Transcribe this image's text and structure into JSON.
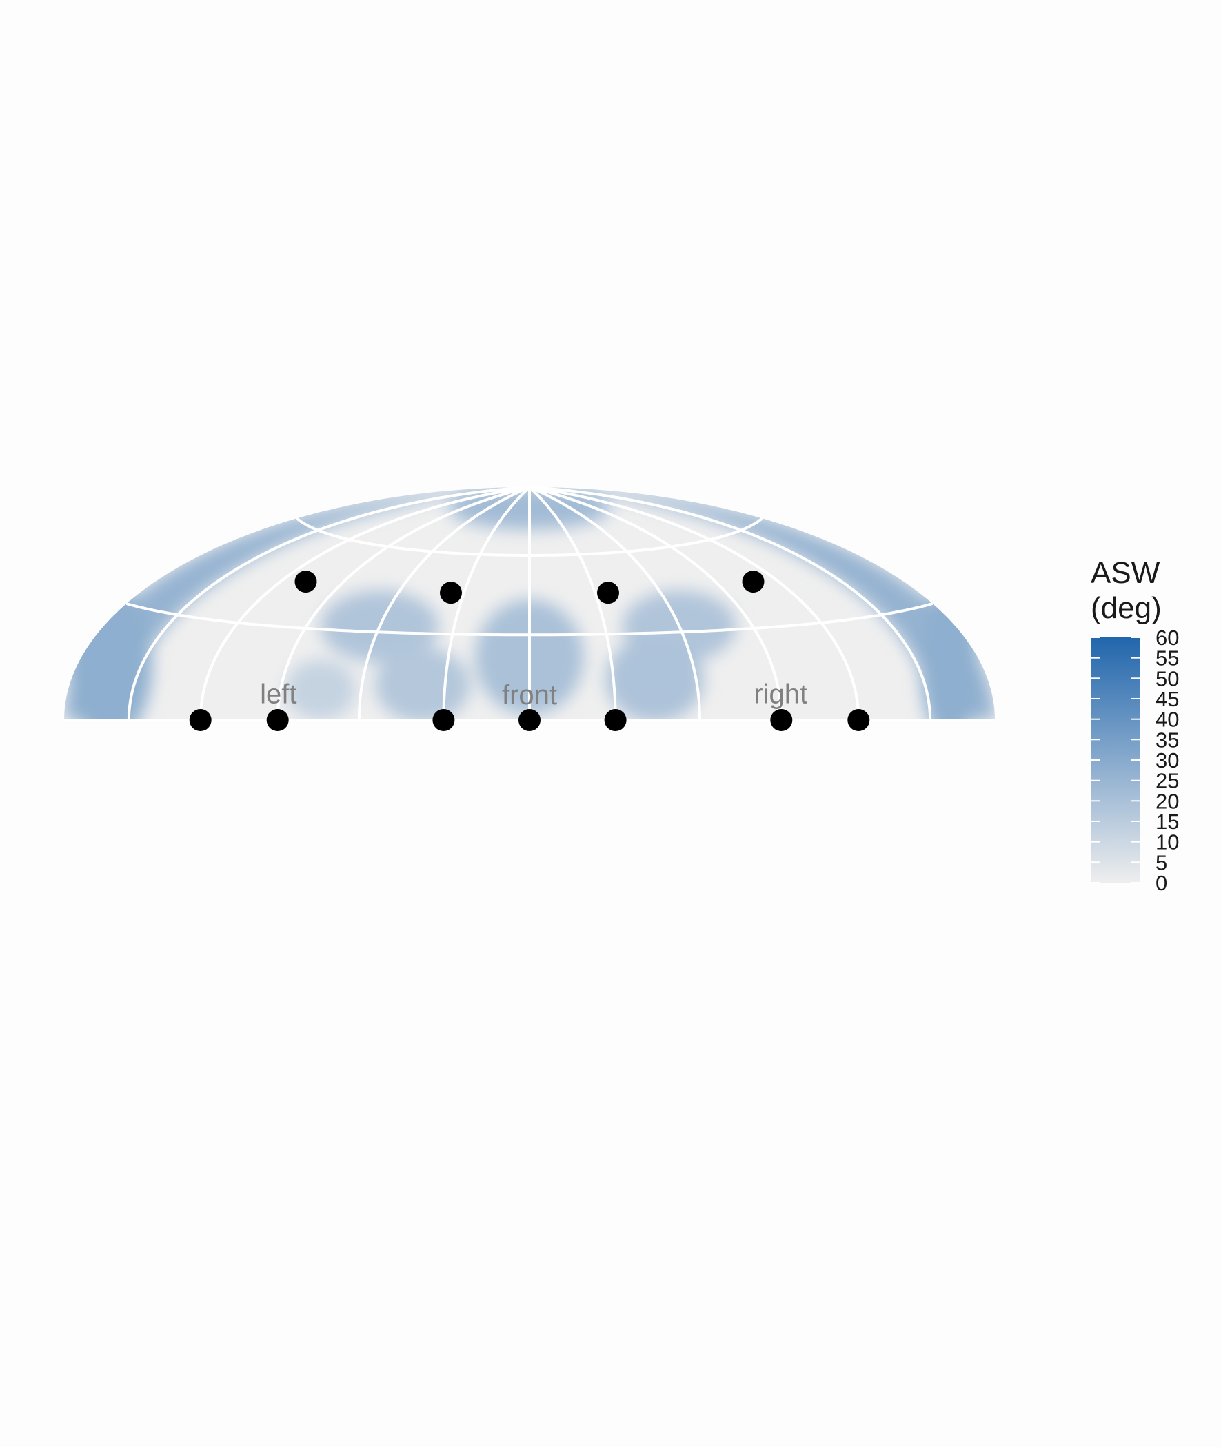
{
  "chart_data": {
    "type": "heatmap",
    "projection": "hammer-aitoff upper hemisphere (azimuth -180..180 deg, elevation 0..90 deg)",
    "azimuth_range": [
      -180,
      180
    ],
    "elevation_range": [
      0,
      90
    ],
    "meridians_deg": [
      -150,
      -120,
      -90,
      -60,
      -30,
      0,
      30,
      60,
      90,
      120,
      150
    ],
    "parallels_deg": [
      30,
      60
    ],
    "region_labels": [
      {
        "text": "left",
        "azimuth": -90,
        "elevation": 5
      },
      {
        "text": "front",
        "azimuth": 0,
        "elevation": 5
      },
      {
        "text": "right",
        "azimuth": 90,
        "elevation": 5
      }
    ],
    "points": [
      {
        "azimuth": -120,
        "elevation": 0
      },
      {
        "azimuth": -90,
        "elevation": 0
      },
      {
        "azimuth": -30,
        "elevation": 0
      },
      {
        "azimuth": 0,
        "elevation": 0
      },
      {
        "azimuth": 30,
        "elevation": 0
      },
      {
        "azimuth": 90,
        "elevation": 0
      },
      {
        "azimuth": 120,
        "elevation": 0
      },
      {
        "azimuth": -108,
        "elevation": 45
      },
      {
        "azimuth": -36,
        "elevation": 45
      },
      {
        "azimuth": 36,
        "elevation": 45
      },
      {
        "azimuth": 108,
        "elevation": 45
      }
    ],
    "field_blobs": [
      {
        "azimuth": 0,
        "elevation": 22,
        "width_deg": 40,
        "height_deg": 42,
        "value": 20
      },
      {
        "azimuth": -60,
        "elevation": 32,
        "width_deg": 48,
        "height_deg": 26,
        "value": 18
      },
      {
        "azimuth": 60,
        "elevation": 32,
        "width_deg": 48,
        "height_deg": 26,
        "value": 18
      },
      {
        "azimuth": -38,
        "elevation": 12,
        "width_deg": 34,
        "height_deg": 26,
        "value": 17
      },
      {
        "azimuth": 45,
        "elevation": 14,
        "width_deg": 36,
        "height_deg": 30,
        "value": 19
      },
      {
        "azimuth": -75,
        "elevation": 10,
        "width_deg": 26,
        "height_deg": 20,
        "value": 12
      },
      {
        "azimuth": -165,
        "elevation": 15,
        "width_deg": 40,
        "height_deg": 45,
        "value": 28
      },
      {
        "azimuth": 165,
        "elevation": 15,
        "width_deg": 40,
        "height_deg": 45,
        "value": 28
      },
      {
        "azimuth": 0,
        "elevation": 80,
        "width_deg": 360,
        "height_deg": 28,
        "value": 22
      }
    ],
    "colorbar": {
      "title": [
        "ASW",
        "(deg)"
      ],
      "min": 0,
      "max": 60,
      "ticks": [
        0,
        5,
        10,
        15,
        20,
        25,
        30,
        35,
        40,
        45,
        50,
        55,
        60
      ],
      "color_low": "#eeeeee",
      "color_high": "#2166ac"
    },
    "colors": {
      "grid": "#ffffff",
      "points": "#000000",
      "region_label": "#808080",
      "base_field": "#efefef"
    }
  }
}
